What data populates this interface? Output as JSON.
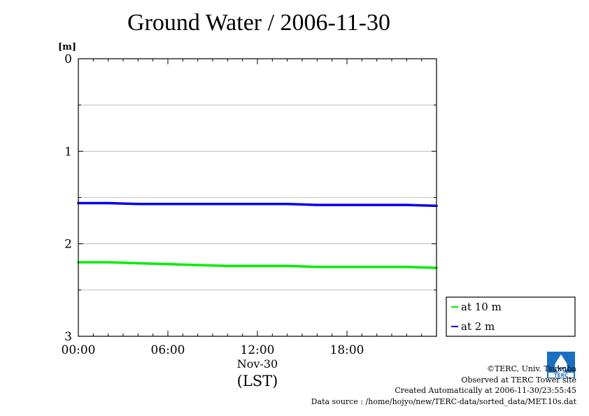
{
  "chart_data": {
    "type": "line",
    "title": "Ground Water / 2006-11-30",
    "ylabel": "[m]",
    "xlabel": "(LST)",
    "x_date_label": "Nov-30",
    "ylim": [
      0,
      3
    ],
    "y_inverted": true,
    "y_ticks": [
      "0",
      "1",
      "2",
      "3"
    ],
    "y_gridlines": [
      0.5,
      1.0,
      1.5,
      2.0,
      2.5
    ],
    "xlim_hours": [
      0,
      24
    ],
    "x_ticks": [
      {
        "hour": 0,
        "label": "00:00"
      },
      {
        "hour": 6,
        "label": "06:00"
      },
      {
        "hour": 12,
        "label": "12:00"
      },
      {
        "hour": 18,
        "label": "18:00"
      }
    ],
    "legend_position": "bottom-right, outside plot",
    "series": [
      {
        "name": "at 10 m",
        "color": "#00ee00",
        "x": [
          0,
          2,
          4,
          6,
          8,
          10,
          12,
          14,
          16,
          18,
          20,
          22,
          24
        ],
        "y": [
          2.2,
          2.2,
          2.21,
          2.22,
          2.23,
          2.24,
          2.24,
          2.24,
          2.25,
          2.25,
          2.25,
          2.25,
          2.26
        ]
      },
      {
        "name": "at 2 m",
        "color": "#0000ee",
        "x": [
          0,
          2,
          4,
          6,
          8,
          10,
          12,
          14,
          16,
          18,
          20,
          22,
          24
        ],
        "y": [
          1.56,
          1.56,
          1.57,
          1.57,
          1.57,
          1.57,
          1.57,
          1.57,
          1.58,
          1.58,
          1.58,
          1.58,
          1.59
        ]
      }
    ]
  },
  "credits": {
    "copyright": "©TERC, Univ. Tsukuba",
    "observed": "Observed at TERC Tower site",
    "created": "Created Automatically at 2006-11-30/23:55:45",
    "source": "Data source : /home/hojyo/new/TERC-data/sorted_data/MET.10s.dat"
  },
  "logo": {
    "text": "TERC",
    "color": "#1a6fc0"
  }
}
